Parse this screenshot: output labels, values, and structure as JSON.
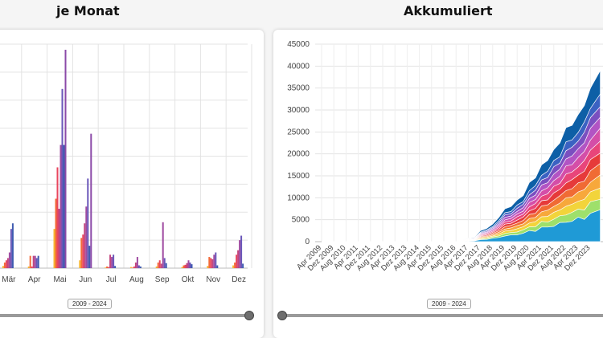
{
  "left": {
    "title": "je Monat",
    "range_label": "2009 - 2024"
  },
  "right": {
    "title": "Akkumuliert",
    "range_label": "2009 - 2024"
  },
  "chart_data": [
    {
      "type": "bar",
      "title": "je Monat",
      "categories": [
        "Mär",
        "Apr",
        "Mai",
        "Jun",
        "Jul",
        "Aug",
        "Sep",
        "Okt",
        "Nov",
        "Dez"
      ],
      "series_colors": [
        "#f7b733",
        "#f36b3a",
        "#e8455e",
        "#c2457e",
        "#9f4ba1",
        "#6956b8",
        "#3f5bb0"
      ],
      "series_values": [
        [
          200,
          150,
          3500,
          700,
          60,
          100,
          150,
          100,
          200,
          250
        ],
        [
          500,
          1100,
          6200,
          2700,
          150,
          50,
          500,
          250,
          1000,
          500
        ],
        [
          700,
          150,
          9000,
          3000,
          100,
          150,
          700,
          300,
          900,
          1200
        ],
        [
          900,
          1100,
          5300,
          4000,
          1200,
          500,
          400,
          450,
          800,
          1600
        ],
        [
          1400,
          1100,
          11000,
          5500,
          1000,
          1000,
          4100,
          700,
          1200,
          2500
        ],
        [
          3500,
          900,
          16000,
          8000,
          1200,
          250,
          900,
          500,
          1400,
          2900
        ],
        [
          4000,
          1100,
          11000,
          2000,
          200,
          150,
          450,
          350,
          250,
          400
        ]
      ],
      "tall_series_values": [
        null,
        null,
        19500,
        12000,
        null,
        null,
        null,
        null,
        null,
        null
      ],
      "ylim": [
        0,
        20000
      ],
      "grid": true
    },
    {
      "type": "area",
      "title": "Akkumuliert",
      "x_labels": [
        "Apr 2009",
        "Dez 2009",
        "Aug 2010",
        "Apr 2011",
        "Dez 2011",
        "Aug 2012",
        "Apr 2013",
        "Dez 2013",
        "Aug 2014",
        "Apr 2015",
        "Dez 2015",
        "Aug 2016",
        "Apr 2017",
        "Dez 2017",
        "Aug 2018",
        "Apr 2019",
        "Dez 2019",
        "Aug 2020",
        "Apr 2021",
        "Dez 2021",
        "Aug 2022",
        "Apr 2023",
        "Dez 2023"
      ],
      "y_ticks": [
        "45000",
        "40000",
        "35000",
        "30000",
        "25000",
        "20000",
        "15000",
        "10000",
        "5000",
        "0"
      ],
      "ylim": [
        0,
        45000
      ],
      "grid": true,
      "stack_colors": [
        "#1f9ad6",
        "#9ee06b",
        "#f2d43b",
        "#f7a83b",
        "#f06b34",
        "#e63a3a",
        "#e8457a",
        "#d44ea8",
        "#b254c4",
        "#7a4fc0",
        "#3b62c2",
        "#0d5fa6"
      ],
      "total_x": [
        0,
        11,
        12,
        12.5,
        13,
        13.5,
        14,
        14.5,
        15,
        15.5,
        16,
        16.5,
        17,
        17.5,
        18,
        18.5,
        19,
        19.5,
        20,
        20.5,
        21,
        21.5,
        22,
        22.8
      ],
      "total_y": [
        0,
        0,
        800,
        1000,
        2500,
        3000,
        4000,
        5500,
        7500,
        8000,
        9500,
        10500,
        13500,
        14500,
        17500,
        18500,
        21000,
        22500,
        26000,
        26500,
        29000,
        31000,
        35000,
        39000
      ]
    }
  ]
}
